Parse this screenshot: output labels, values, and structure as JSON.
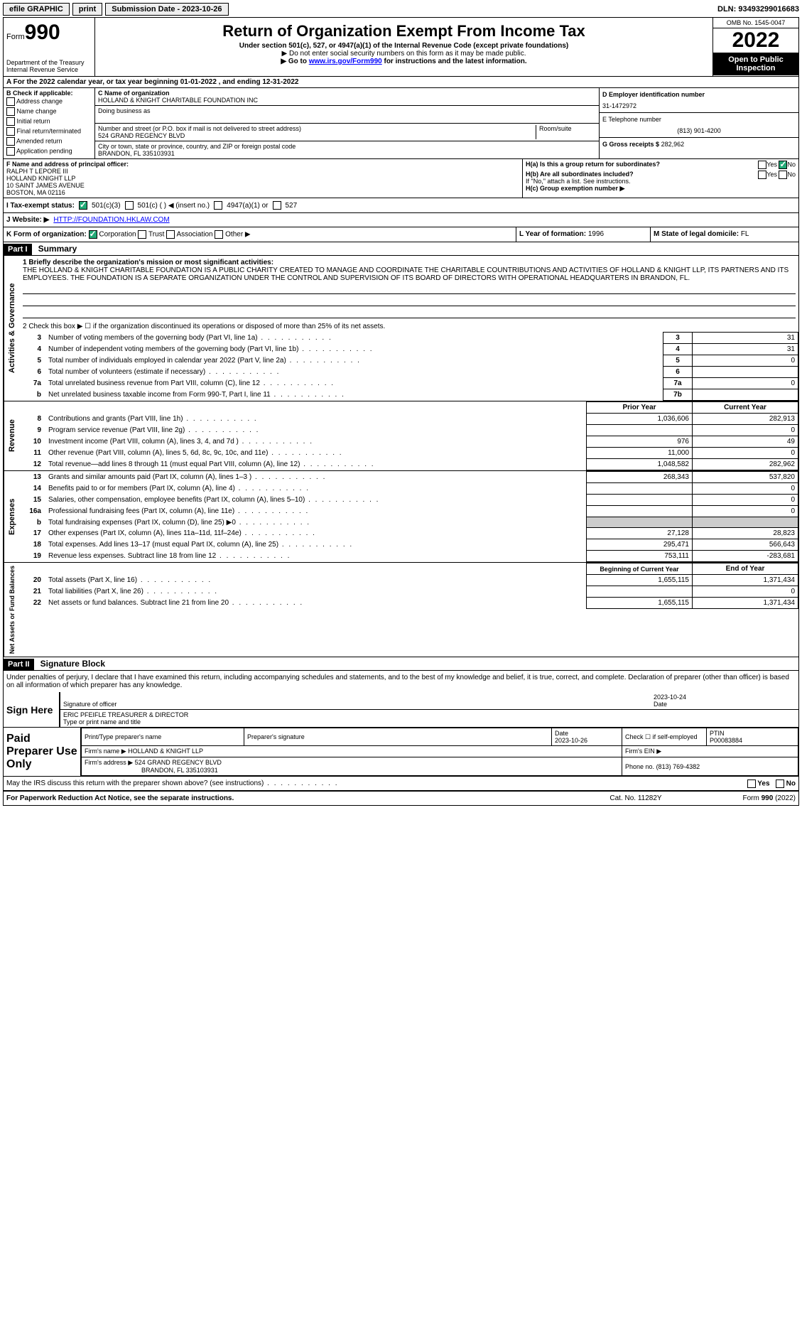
{
  "topbar": {
    "efile": "efile GRAPHIC",
    "print": "print",
    "submission_label": "Submission Date - 2023-10-26",
    "dln": "DLN: 93493299016683"
  },
  "header": {
    "form_prefix": "Form",
    "form_number": "990",
    "dept": "Department of the Treasury",
    "irs": "Internal Revenue Service",
    "title": "Return of Organization Exempt From Income Tax",
    "subtitle": "Under section 501(c), 527, or 4947(a)(1) of the Internal Revenue Code (except private foundations)",
    "note1": "▶ Do not enter social security numbers on this form as it may be made public.",
    "note2_pre": "▶ Go to ",
    "note2_link": "www.irs.gov/Form990",
    "note2_post": " for instructions and the latest information.",
    "omb": "OMB No. 1545-0047",
    "year": "2022",
    "open": "Open to Public Inspection"
  },
  "period": {
    "text_pre": "A For the 2022 calendar year, or tax year beginning ",
    "begin": "01-01-2022",
    "mid": " , and ending ",
    "end": "12-31-2022"
  },
  "checkbox_b": {
    "label": "B Check if applicable:",
    "items": [
      "Address change",
      "Name change",
      "Initial return",
      "Final return/terminated",
      "Amended return",
      "Application pending"
    ]
  },
  "entity": {
    "c_label": "C Name of organization",
    "name": "HOLLAND & KNIGHT CHARITABLE FOUNDATION INC",
    "dba_label": "Doing business as",
    "street_label": "Number and street (or P.O. box if mail is not delivered to street address)",
    "street": "524 GRAND REGENCY BLVD",
    "room_label": "Room/suite",
    "city_label": "City or town, state or province, country, and ZIP or foreign postal code",
    "city": "BRANDON, FL  335103931",
    "d_label": "D Employer identification number",
    "ein": "31-1472972",
    "e_label": "E Telephone number",
    "phone": "(813) 901-4200",
    "g_label": "G Gross receipts $",
    "gross": "282,962"
  },
  "officer": {
    "f_label": "F  Name and address of principal officer:",
    "name": "RALPH T LEPORE III",
    "org": "HOLLAND KNIGHT LLP",
    "addr": "10 SAINT JAMES AVENUE",
    "city": "BOSTON, MA  02116",
    "ha_label": "H(a)  Is this a group return for subordinates?",
    "hb_label": "H(b)  Are all subordinates included?",
    "hb_note": "If \"No,\" attach a list. See instructions.",
    "hc_label": "H(c)  Group exemption number ▶"
  },
  "status": {
    "i_label": "I   Tax-exempt status:",
    "opt1": "501(c)(3)",
    "opt2": "501(c) (    ) ◀ (insert no.)",
    "opt3": "4947(a)(1) or",
    "opt4": "527"
  },
  "website": {
    "j_label": "J   Website: ▶",
    "url": "HTTP://FOUNDATION.HKLAW.COM"
  },
  "korg": {
    "k_label": "K Form of organization:",
    "opts": [
      "Corporation",
      "Trust",
      "Association",
      "Other ▶"
    ],
    "l_label": "L Year of formation:",
    "l_val": "1996",
    "m_label": "M State of legal domicile:",
    "m_val": "FL"
  },
  "part1": {
    "header": "Part I",
    "title": "Summary",
    "line1_label": "1  Briefly describe the organization's mission or most significant activities:",
    "mission": "THE HOLLAND & KNIGHT CHARITABLE FOUNDATION IS A PUBLIC CHARITY CREATED TO MANAGE AND COORDINATE THE CHARITABLE COUNTRIBUTIONS AND ACTIVITIES OF HOLLAND & KNIGHT LLP, ITS PARTNERS AND ITS EMPLOYEES. THE FOUNDATION IS A SEPARATE ORGANIZATION UNDER THE CONTROL AND SUPERVISION OF ITS BOARD OF DIRECTORS WITH OPERATIONAL HEADQUARTERS IN BRANDON, FL.",
    "line2": "2   Check this box ▶ ☐  if the organization discontinued its operations or disposed of more than 25% of its net assets.",
    "gov_label": "Activities & Governance",
    "rev_label": "Revenue",
    "exp_label": "Expenses",
    "net_label": "Net Assets or Fund Balances",
    "rows_gov": [
      {
        "n": "3",
        "desc": "Number of voting members of the governing body (Part VI, line 1a)",
        "box": "3",
        "val": "31"
      },
      {
        "n": "4",
        "desc": "Number of independent voting members of the governing body (Part VI, line 1b)",
        "box": "4",
        "val": "31"
      },
      {
        "n": "5",
        "desc": "Total number of individuals employed in calendar year 2022 (Part V, line 2a)",
        "box": "5",
        "val": "0"
      },
      {
        "n": "6",
        "desc": "Total number of volunteers (estimate if necessary)",
        "box": "6",
        "val": ""
      },
      {
        "n": "7a",
        "desc": "Total unrelated business revenue from Part VIII, column (C), line 12",
        "box": "7a",
        "val": "0"
      },
      {
        "n": "b",
        "desc": "Net unrelated business taxable income from Form 990-T, Part I, line 11",
        "box": "7b",
        "val": ""
      }
    ],
    "col_headers": {
      "prior": "Prior Year",
      "current": "Current Year"
    },
    "rows_rev": [
      {
        "n": "8",
        "desc": "Contributions and grants (Part VIII, line 1h)",
        "prior": "1,036,606",
        "current": "282,913"
      },
      {
        "n": "9",
        "desc": "Program service revenue (Part VIII, line 2g)",
        "prior": "",
        "current": "0"
      },
      {
        "n": "10",
        "desc": "Investment income (Part VIII, column (A), lines 3, 4, and 7d )",
        "prior": "976",
        "current": "49"
      },
      {
        "n": "11",
        "desc": "Other revenue (Part VIII, column (A), lines 5, 6d, 8c, 9c, 10c, and 11e)",
        "prior": "11,000",
        "current": "0"
      },
      {
        "n": "12",
        "desc": "Total revenue—add lines 8 through 11 (must equal Part VIII, column (A), line 12)",
        "prior": "1,048,582",
        "current": "282,962"
      }
    ],
    "rows_exp": [
      {
        "n": "13",
        "desc": "Grants and similar amounts paid (Part IX, column (A), lines 1–3 )",
        "prior": "268,343",
        "current": "537,820"
      },
      {
        "n": "14",
        "desc": "Benefits paid to or for members (Part IX, column (A), line 4)",
        "prior": "",
        "current": "0"
      },
      {
        "n": "15",
        "desc": "Salaries, other compensation, employee benefits (Part IX, column (A), lines 5–10)",
        "prior": "",
        "current": "0"
      },
      {
        "n": "16a",
        "desc": "Professional fundraising fees (Part IX, column (A), line 11e)",
        "prior": "",
        "current": "0"
      },
      {
        "n": "b",
        "desc": "Total fundraising expenses (Part IX, column (D), line 25) ▶0",
        "prior": "",
        "current": "",
        "shade": true
      },
      {
        "n": "17",
        "desc": "Other expenses (Part IX, column (A), lines 11a–11d, 11f–24e)",
        "prior": "27,128",
        "current": "28,823"
      },
      {
        "n": "18",
        "desc": "Total expenses. Add lines 13–17 (must equal Part IX, column (A), line 25)",
        "prior": "295,471",
        "current": "566,643"
      },
      {
        "n": "19",
        "desc": "Revenue less expenses. Subtract line 18 from line 12",
        "prior": "753,111",
        "current": "-283,681"
      }
    ],
    "net_headers": {
      "begin": "Beginning of Current Year",
      "end": "End of Year"
    },
    "rows_net": [
      {
        "n": "20",
        "desc": "Total assets (Part X, line 16)",
        "prior": "1,655,115",
        "current": "1,371,434"
      },
      {
        "n": "21",
        "desc": "Total liabilities (Part X, line 26)",
        "prior": "",
        "current": "0"
      },
      {
        "n": "22",
        "desc": "Net assets or fund balances. Subtract line 21 from line 20",
        "prior": "1,655,115",
        "current": "1,371,434"
      }
    ]
  },
  "part2": {
    "header": "Part II",
    "title": "Signature Block",
    "perjury": "Under penalties of perjury, I declare that I have examined this return, including accompanying schedules and statements, and to the best of my knowledge and belief, it is true, correct, and complete. Declaration of preparer (other than officer) is based on all information of which preparer has any knowledge.",
    "sign_here": "Sign Here",
    "sig_officer": "Signature of officer",
    "sig_date": "2023-10-24",
    "date_label": "Date",
    "officer_name": "ERIC PFEIFLE  TREASURER & DIRECTOR",
    "type_label": "Type or print name and title",
    "paid": "Paid Preparer Use Only",
    "prep_name_label": "Print/Type preparer's name",
    "prep_sig_label": "Preparer's signature",
    "prep_date_label": "Date",
    "prep_date": "2023-10-26",
    "self_emp": "Check ☐ if self-employed",
    "ptin_label": "PTIN",
    "ptin": "P00083884",
    "firm_name_label": "Firm's name    ▶",
    "firm_name": "HOLLAND & KNIGHT LLP",
    "firm_ein_label": "Firm's EIN ▶",
    "firm_addr_label": "Firm's address ▶",
    "firm_addr1": "524 GRAND REGENCY BLVD",
    "firm_addr2": "BRANDON, FL  335103931",
    "firm_phone_label": "Phone no.",
    "firm_phone": "(813) 769-4382",
    "discuss": "May the IRS discuss this return with the preparer shown above? (see instructions)",
    "yes": "Yes",
    "no": "No"
  },
  "footer": {
    "paperwork": "For Paperwork Reduction Act Notice, see the separate instructions.",
    "cat": "Cat. No. 11282Y",
    "form": "Form 990 (2022)"
  }
}
